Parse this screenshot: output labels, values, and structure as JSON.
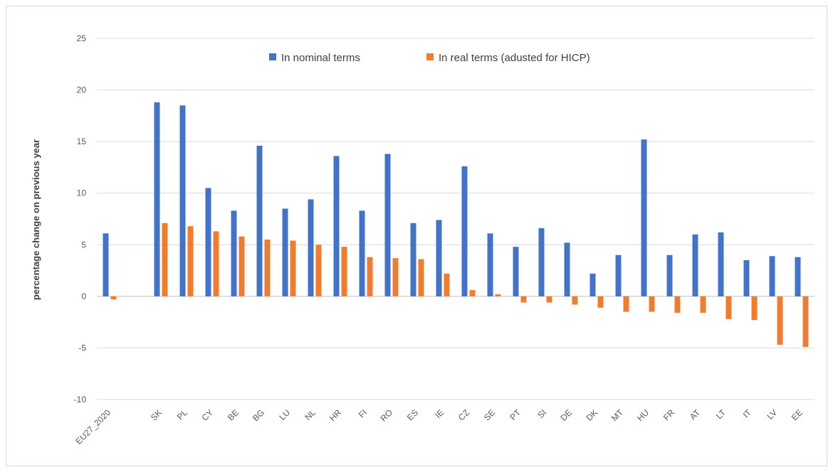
{
  "chart_data": {
    "type": "bar",
    "title": "",
    "xlabel": "",
    "ylabel": "percentage change on previous year",
    "ylim": [
      -10,
      25
    ],
    "yticks": [
      -10,
      -5,
      0,
      5,
      10,
      15,
      20,
      25
    ],
    "grid": true,
    "legend_position": "top",
    "categories": [
      "EU27_2020",
      "",
      "SK",
      "PL",
      "CY",
      "BE",
      "BG",
      "LU",
      "NL",
      "HR",
      "FI",
      "RO",
      "ES",
      "IE",
      "CZ",
      "SE",
      "PT",
      "SI",
      "DE",
      "DK",
      "MT",
      "HU",
      "FR",
      "AT",
      "LT",
      "IT",
      "LV",
      "EE"
    ],
    "series": [
      {
        "name": "In nominal terms",
        "color": "#4472c4",
        "values": [
          6.1,
          null,
          18.8,
          18.5,
          10.5,
          8.3,
          14.6,
          8.5,
          9.4,
          13.6,
          8.3,
          13.8,
          7.1,
          7.4,
          12.6,
          6.1,
          4.8,
          6.6,
          5.2,
          2.2,
          4.0,
          15.2,
          4.0,
          6.0,
          6.2,
          3.5,
          3.9,
          3.8
        ]
      },
      {
        "name": "In real terms (adusted for HICP)",
        "color": "#ed7d31",
        "values": [
          -0.3,
          null,
          7.1,
          6.8,
          6.3,
          5.8,
          5.5,
          5.4,
          5.0,
          4.8,
          3.8,
          3.7,
          3.6,
          2.2,
          0.6,
          0.2,
          -0.6,
          -0.6,
          -0.8,
          -1.1,
          -1.5,
          -1.5,
          -1.6,
          -1.6,
          -2.2,
          -2.3,
          -4.7,
          -4.9
        ]
      }
    ]
  }
}
